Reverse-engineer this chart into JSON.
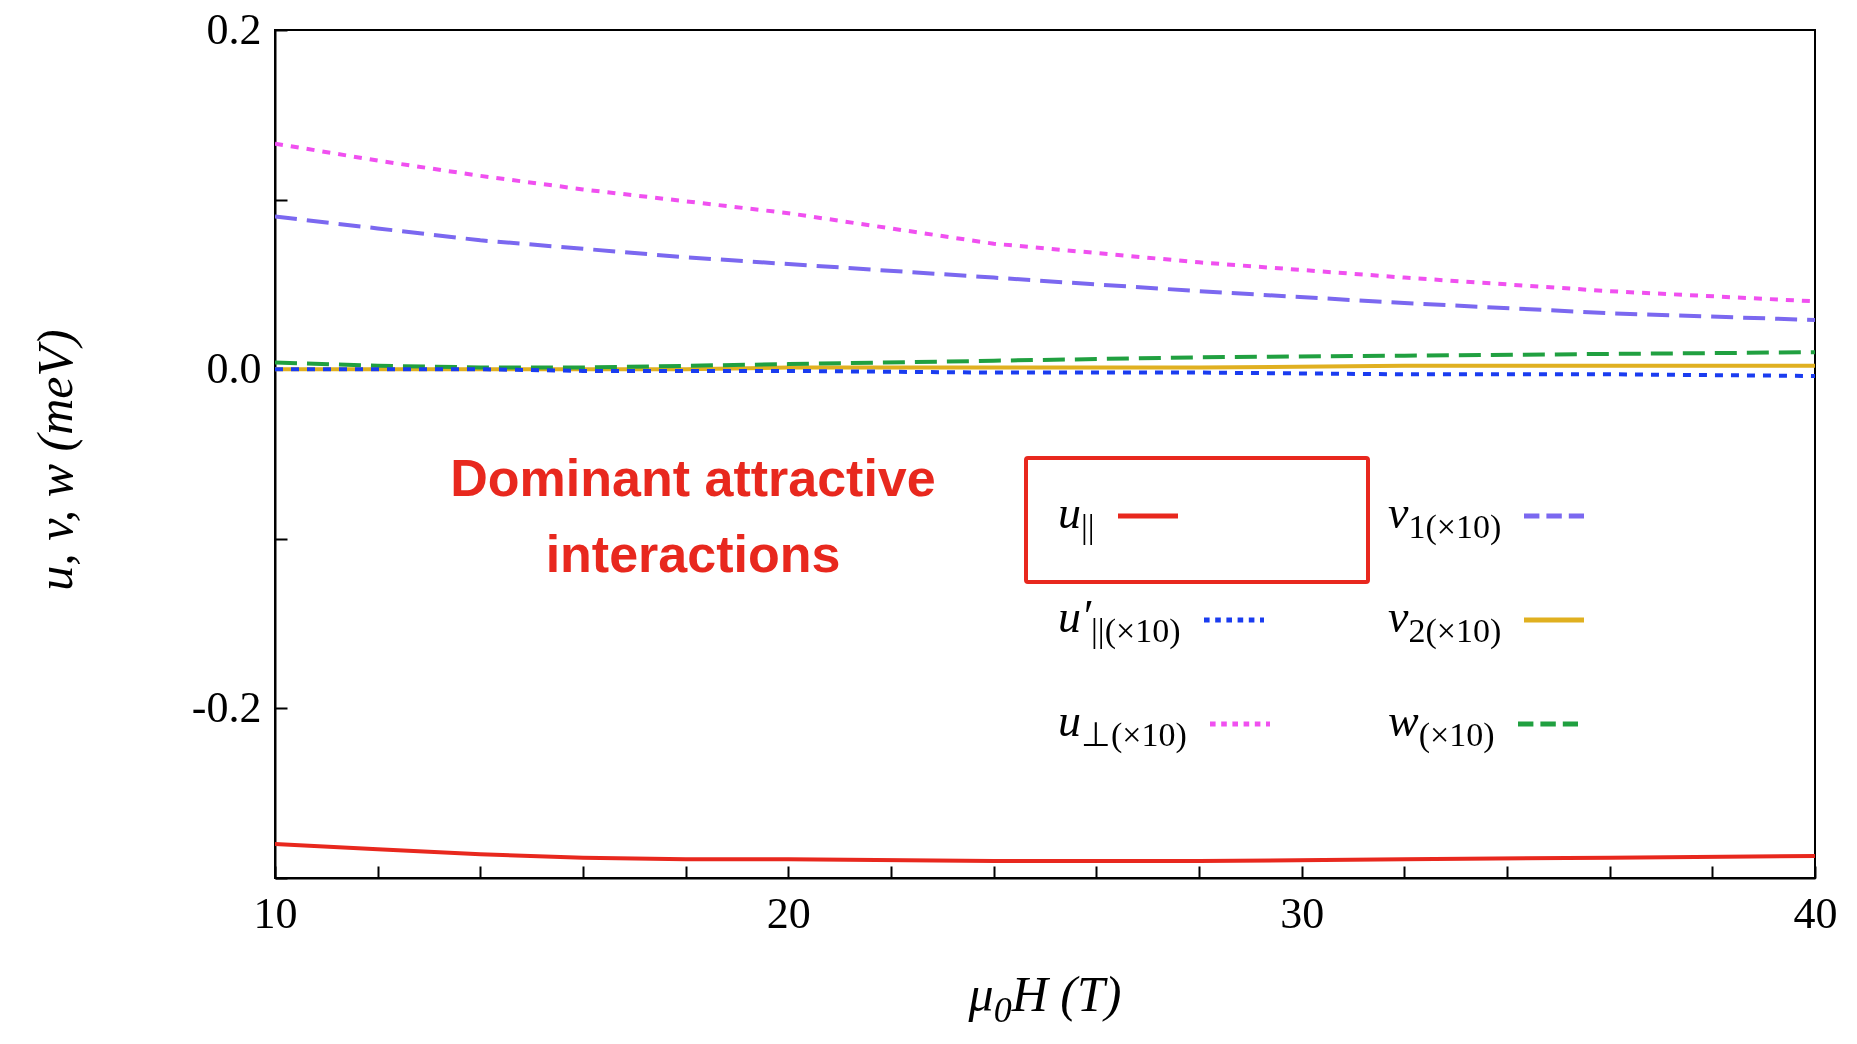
{
  "chart_data": {
    "type": "line",
    "xlabel": "μ$_{0}$H (T)",
    "ylabel": "u, v, w (meV)",
    "x": [
      10,
      12,
      14,
      16,
      18,
      20,
      24,
      28,
      32,
      36,
      40
    ],
    "series": [
      {
        "name": "u$_{||}$",
        "color": "#e8281e",
        "line_style": "solid",
        "values": [
          -0.28,
          -0.283,
          -0.286,
          -0.288,
          -0.289,
          -0.289,
          -0.29,
          -0.29,
          -0.289,
          -0.288,
          -0.287
        ]
      },
      {
        "name": "u′$_{||(×10)}$",
        "color": "#1a3cf0",
        "line_style": "dotted",
        "values": [
          0,
          0,
          0,
          -0.001,
          -0.001,
          -0.001,
          -0.002,
          -0.002,
          -0.003,
          -0.003,
          -0.004
        ]
      },
      {
        "name": "u$_{⊥(×10)}$",
        "color": "#f050f0",
        "line_style": "dotted",
        "values": [
          0.133,
          0.123,
          0.114,
          0.106,
          0.099,
          0.092,
          0.074,
          0.063,
          0.054,
          0.046,
          0.04
        ]
      },
      {
        "name": "v$_{1(×10)}$",
        "color": "#7b68f0",
        "line_style": "dashed",
        "values": [
          0.09,
          0.083,
          0.076,
          0.071,
          0.066,
          0.062,
          0.054,
          0.046,
          0.039,
          0.033,
          0.029
        ]
      },
      {
        "name": "v$_{2(×10)}$",
        "color": "#e0b020",
        "line_style": "solid",
        "values": [
          0,
          0,
          0,
          0,
          0,
          0.001,
          0.001,
          0.001,
          0.002,
          0.002,
          0.002
        ]
      },
      {
        "name": "w$_{(×10)}$",
        "color": "#20a040",
        "line_style": "dashed",
        "values": [
          0.004,
          0.002,
          0.001,
          0.001,
          0.002,
          0.003,
          0.005,
          0.007,
          0.008,
          0.009,
          0.01
        ]
      }
    ],
    "xlim": [
      10,
      40
    ],
    "xticks": [
      10,
      {
        "value": 12,
        "label": null
      },
      {
        "value": 14,
        "label": null
      },
      {
        "value": 16,
        "label": null
      },
      {
        "value": 18,
        "label": null
      },
      20,
      {
        "value": 22,
        "label": null
      },
      {
        "value": 24,
        "label": null
      },
      {
        "value": 26,
        "label": null
      },
      {
        "value": 28,
        "label": null
      },
      30,
      {
        "value": 32,
        "label": null
      },
      {
        "value": 34,
        "label": null
      },
      {
        "value": 36,
        "label": null
      },
      {
        "value": 38,
        "label": null
      },
      40
    ],
    "ylim": [
      -0.3,
      0.2
    ],
    "yticks": [
      {
        "value": -0.3,
        "label": null
      },
      {
        "value": -0.2,
        "label": "-0.2"
      },
      {
        "value": -0.1,
        "label": null
      },
      {
        "value": 0,
        "label": "0.0"
      },
      {
        "value": 0.1,
        "label": null
      },
      {
        "value": 0.2,
        "label": "0.2"
      }
    ],
    "grid": false,
    "legend": "bottom right",
    "marker": "none",
    "annotations": [
      "Dominant attractive interactions"
    ]
  }
}
